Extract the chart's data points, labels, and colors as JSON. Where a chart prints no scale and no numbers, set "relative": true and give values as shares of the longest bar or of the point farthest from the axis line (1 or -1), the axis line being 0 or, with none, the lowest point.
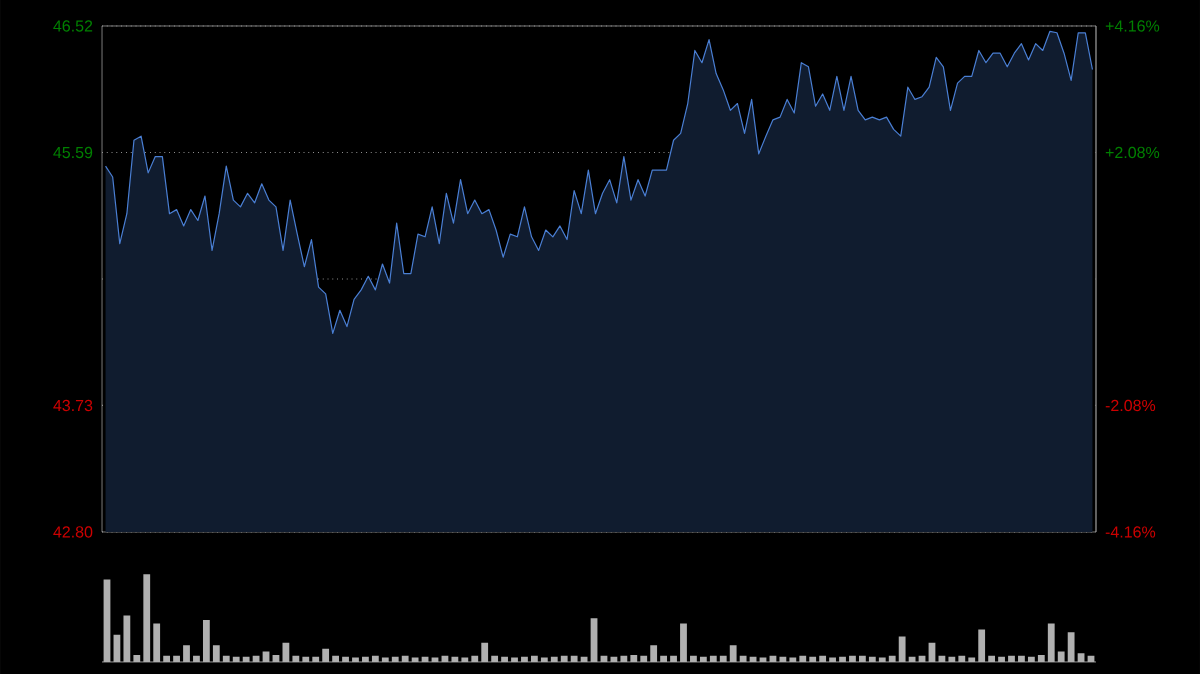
{
  "chart_data": [
    {
      "type": "area",
      "color": "#4a7fd4",
      "categories": [
        null,
        null,
        null,
        null,
        null,
        null,
        null,
        null,
        null,
        null,
        null,
        null,
        null,
        null,
        null,
        null,
        null,
        null,
        null,
        null,
        null,
        null,
        null,
        null,
        null,
        null,
        null,
        null,
        null,
        null,
        null,
        null,
        null,
        null,
        null,
        null,
        null,
        null,
        null,
        null,
        null,
        null,
        null,
        null,
        null,
        null,
        null,
        null,
        null,
        null,
        null,
        null,
        null,
        null,
        null,
        null,
        null,
        null,
        null,
        null,
        null,
        null,
        null,
        null,
        null,
        null,
        null,
        null,
        null,
        null,
        null,
        null,
        null,
        null,
        null,
        null,
        null,
        null,
        null,
        null,
        null,
        null,
        null,
        null,
        null,
        null,
        null,
        null,
        null,
        null,
        null,
        null,
        null,
        null,
        null,
        null,
        null,
        null,
        null,
        null,
        null,
        null,
        null,
        null,
        null,
        null,
        null,
        null,
        null,
        null,
        null,
        null,
        null,
        null,
        null,
        null,
        null,
        null,
        null,
        null,
        null,
        null,
        null,
        null,
        null,
        null,
        null,
        null,
        null,
        null,
        null,
        null,
        null,
        null,
        null,
        null,
        null,
        null,
        null,
        null
      ],
      "values": [
        45.49,
        45.41,
        44.92,
        45.14,
        45.68,
        45.71,
        45.44,
        45.56,
        45.56,
        45.14,
        45.17,
        45.05,
        45.17,
        45.09,
        45.27,
        44.87,
        45.14,
        45.49,
        45.24,
        45.19,
        45.29,
        45.22,
        45.36,
        45.24,
        45.19,
        44.87,
        45.24,
        44.99,
        44.75,
        44.95,
        44.6,
        44.55,
        44.26,
        44.43,
        44.31,
        44.51,
        44.58,
        44.68,
        44.58,
        44.77,
        44.63,
        45.07,
        44.7,
        44.7,
        44.99,
        44.97,
        45.19,
        44.92,
        45.29,
        45.07,
        45.39,
        45.14,
        45.24,
        45.14,
        45.17,
        45.02,
        44.82,
        44.99,
        44.97,
        45.19,
        44.97,
        44.87,
        45.02,
        44.97,
        45.05,
        44.95,
        45.31,
        45.14,
        45.46,
        45.14,
        45.29,
        45.39,
        45.22,
        45.56,
        45.24,
        45.39,
        45.27,
        45.46,
        45.46,
        45.46,
        45.68,
        45.73,
        45.95,
        46.34,
        46.25,
        46.42,
        46.17,
        46.05,
        45.9,
        45.95,
        45.73,
        45.98,
        45.58,
        45.71,
        45.83,
        45.85,
        45.98,
        45.88,
        46.25,
        46.22,
        45.93,
        46.02,
        45.9,
        46.15,
        45.9,
        46.15,
        45.9,
        45.83,
        45.85,
        45.83,
        45.85,
        45.76,
        45.71,
        46.07,
        45.98,
        46.0,
        46.07,
        46.29,
        46.22,
        45.9,
        46.1,
        46.15,
        46.15,
        46.34,
        46.25,
        46.32,
        46.32,
        46.22,
        46.32,
        46.39,
        46.27,
        46.39,
        46.34,
        46.48,
        46.47,
        46.32,
        46.12,
        46.47,
        46.47,
        46.2
      ],
      "ylim": [
        42.8,
        46.52
      ],
      "yticks": [
        {
          "value": 42.8,
          "label": "42.80"
        },
        {
          "value": 43.73,
          "label": "43.73"
        },
        {
          "value": 44.66,
          "label": null
        },
        {
          "value": 45.59,
          "label": "45.59"
        },
        {
          "value": 46.52,
          "label": "46.52"
        }
      ],
      "y2lim": [
        -4.16,
        4.16
      ],
      "y2ticks": [
        {
          "value": -4.16,
          "label": "-4.16%"
        },
        {
          "value": -2.08,
          "label": "-2.08%"
        },
        {
          "value": 0,
          "label": null
        },
        {
          "value": 2.08,
          "label": "+2.08%"
        },
        {
          "value": 4.16,
          "label": "+4.16%"
        }
      ],
      "grid": "y"
    },
    {
      "type": "bar",
      "relative": true,
      "color": "#b0b0b0",
      "categories": [
        null,
        null,
        null,
        null,
        null,
        null,
        null,
        null,
        null,
        null,
        null,
        null,
        null,
        null,
        null,
        null,
        null,
        null,
        null,
        null,
        null,
        null,
        null,
        null,
        null,
        null,
        null,
        null,
        null,
        null,
        null,
        null,
        null,
        null,
        null,
        null,
        null,
        null,
        null,
        null,
        null,
        null,
        null,
        null,
        null,
        null,
        null,
        null,
        null,
        null,
        null,
        null,
        null,
        null,
        null,
        null,
        null,
        null,
        null,
        null,
        null,
        null,
        null,
        null,
        null,
        null,
        null,
        null,
        null,
        null,
        null,
        null,
        null,
        null,
        null,
        null,
        null,
        null,
        null,
        null,
        null,
        null,
        null,
        null,
        null,
        null,
        null,
        null,
        null,
        null,
        null,
        null,
        null,
        null,
        null,
        null,
        null,
        null,
        null,
        null
      ],
      "values": [
        0.94,
        0.31,
        0.53,
        0.08,
        1.0,
        0.44,
        0.07,
        0.07,
        0.19,
        0.07,
        0.48,
        0.19,
        0.07,
        0.06,
        0.06,
        0.07,
        0.12,
        0.08,
        0.22,
        0.07,
        0.06,
        0.06,
        0.15,
        0.07,
        0.06,
        0.05,
        0.06,
        0.07,
        0.05,
        0.06,
        0.07,
        0.05,
        0.06,
        0.05,
        0.07,
        0.06,
        0.05,
        0.07,
        0.22,
        0.07,
        0.06,
        0.05,
        0.06,
        0.07,
        0.05,
        0.06,
        0.07,
        0.07,
        0.06,
        0.5,
        0.07,
        0.06,
        0.07,
        0.08,
        0.07,
        0.19,
        0.07,
        0.07,
        0.44,
        0.07,
        0.06,
        0.07,
        0.07,
        0.19,
        0.07,
        0.06,
        0.05,
        0.07,
        0.06,
        0.05,
        0.07,
        0.06,
        0.07,
        0.05,
        0.06,
        0.07,
        0.07,
        0.06,
        0.05,
        0.07,
        0.29,
        0.06,
        0.07,
        0.22,
        0.07,
        0.06,
        0.07,
        0.05,
        0.37,
        0.07,
        0.06,
        0.07,
        0.07,
        0.06,
        0.08,
        0.44,
        0.12,
        0.34,
        0.1,
        0.07
      ]
    }
  ]
}
